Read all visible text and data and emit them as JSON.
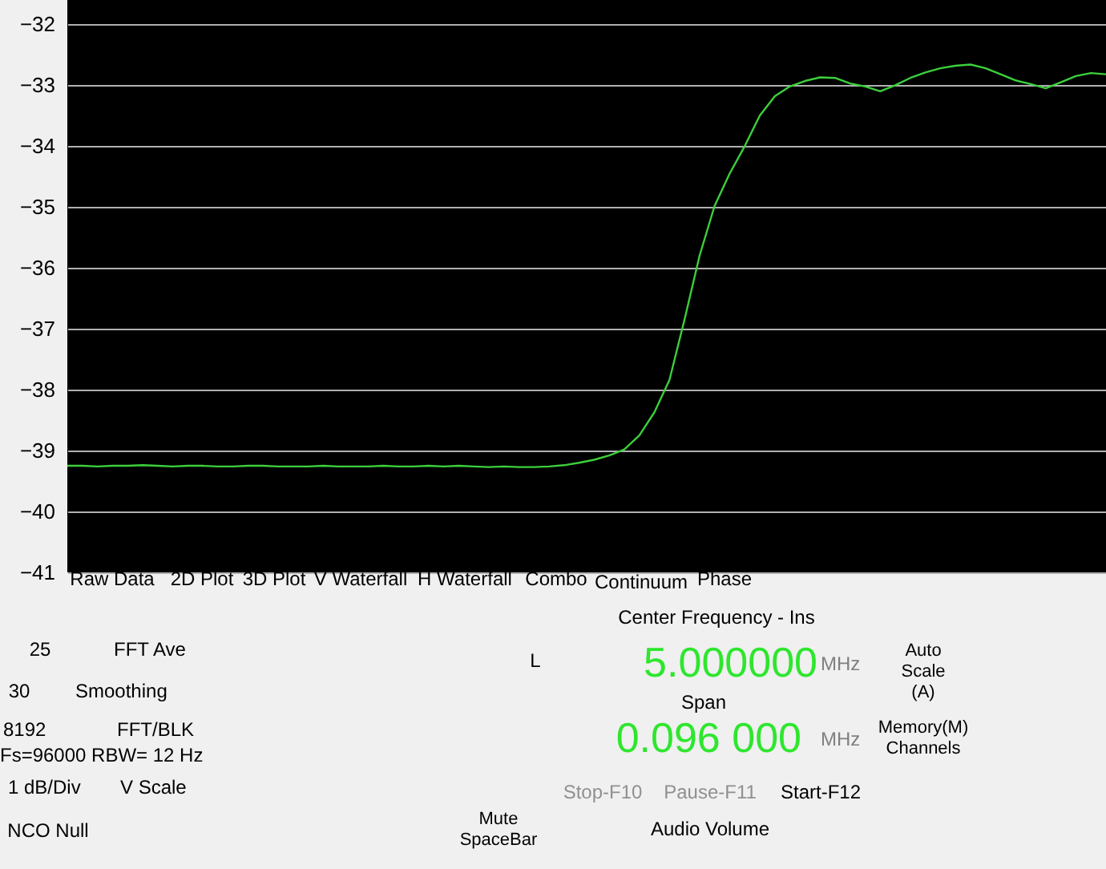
{
  "chart_data": {
    "type": "line",
    "categories": [
      null,
      null,
      null,
      null,
      null,
      null,
      null,
      null,
      null,
      null,
      null,
      null,
      null,
      null,
      null,
      null,
      null,
      null,
      null,
      null,
      null,
      null,
      null,
      null,
      null,
      null,
      null,
      null,
      null,
      null,
      null,
      null,
      null,
      null,
      null,
      null,
      null,
      null,
      null,
      null,
      null,
      null,
      null,
      null,
      null,
      null,
      null,
      null,
      null,
      null,
      null,
      null,
      null,
      null,
      null,
      null,
      null,
      null,
      null,
      null,
      null,
      null,
      null,
      null,
      null,
      null,
      null,
      null,
      null,
      null
    ],
    "series": [
      {
        "color": "#3ccf3c",
        "values": [
          -39.25,
          -39.25,
          -39.26,
          -39.25,
          -39.25,
          -39.24,
          -39.25,
          -39.26,
          -39.25,
          -39.25,
          -39.26,
          -39.26,
          -39.25,
          -39.25,
          -39.26,
          -39.26,
          -39.26,
          -39.25,
          -39.26,
          -39.26,
          -39.26,
          -39.25,
          -39.26,
          -39.26,
          -39.25,
          -39.26,
          -39.25,
          -39.26,
          -39.27,
          -39.26,
          -39.27,
          -39.27,
          -39.26,
          -39.24,
          -39.2,
          -39.15,
          -39.08,
          -38.98,
          -38.75,
          -38.37,
          -37.84,
          -36.85,
          -35.8,
          -34.98,
          -34.45,
          -34.0,
          -33.5,
          -33.18,
          -33.02,
          -32.93,
          -32.87,
          -32.88,
          -32.97,
          -33.02,
          -33.1,
          -33.0,
          -32.88,
          -32.79,
          -32.72,
          -32.68,
          -32.66,
          -32.72,
          -32.82,
          -32.92,
          -32.98,
          -33.05,
          -32.95,
          -32.85,
          -32.8,
          -32.82
        ]
      }
    ],
    "ylim": [
      -41,
      -31.6
    ],
    "yticks": [
      -41,
      -40,
      -39,
      -38,
      -37,
      -36,
      -35,
      -34,
      -33,
      -32
    ],
    "grid": true,
    "annotations": [
      "Raw Data",
      "2D Plot",
      "3D Plot",
      "V Waterfall",
      "H Waterfall",
      "Combo",
      "Continuum",
      "Phase",
      "Center Frequency - Ins",
      "25",
      "FFT Ave",
      "30",
      "Smoothing",
      "8192",
      "FFT/BLK",
      "Fs=96000 RBW=  12 Hz",
      "1 dB/Div",
      "V Scale",
      "L",
      "5.000000",
      "MHz",
      "Auto Scale (A)",
      "Span",
      "0.096 000",
      "MHz",
      "Memory(M) Channels",
      "Stop-F10",
      "Pause-F11",
      "Start-F12",
      "Mute SpaceBar",
      "Audio Volume",
      "NCO Null"
    ]
  }
}
